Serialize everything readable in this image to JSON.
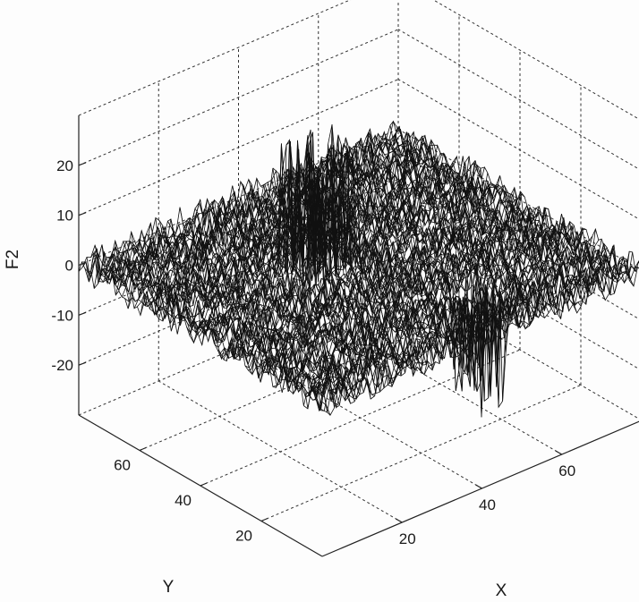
{
  "chart_data": {
    "type": "surface",
    "title": "",
    "xlabel": "X",
    "ylabel": "Y",
    "zlabel": "F2",
    "xlim": [
      0,
      80
    ],
    "ylim": [
      0,
      80
    ],
    "zlim": [
      -30,
      30
    ],
    "x_ticks": [
      "20",
      "40",
      "60"
    ],
    "y_ticks": [
      "20",
      "40",
      "60"
    ],
    "z_ticks": [
      "-20",
      "-10",
      "0",
      "10",
      "20"
    ],
    "grid": "on",
    "surface": {
      "grid_points": 80,
      "background_noise_amplitude": 3,
      "peak_region": {
        "x": [
          28,
          40
        ],
        "y": [
          40,
          52
        ],
        "z_max": 26
      },
      "trough_region": {
        "x": [
          46,
          54
        ],
        "y": [
          10,
          20
        ],
        "z_min": -22
      }
    },
    "colors": {
      "mesh": "#111111",
      "grid": "#333333",
      "background": "#fdfdfd"
    }
  }
}
